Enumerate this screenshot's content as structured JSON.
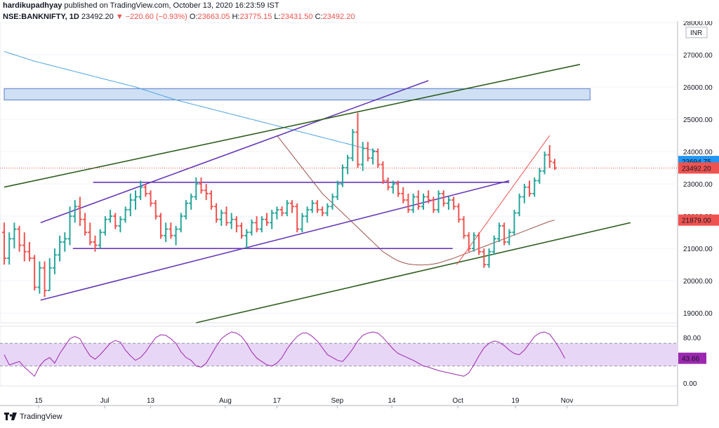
{
  "header": {
    "user": "hardikupadhyay",
    "published": "published on TradingView.com, October 13, 2020 16:23:59 IST",
    "symbol": "NSE:BANKNIFTY, 1D",
    "last": "23492.20",
    "change": "▼ −220.60 (−0.93%)",
    "o_label": "O:",
    "o_val": "23663.05",
    "h_label": "H:",
    "h_val": "23775.15",
    "l_label": "L:",
    "l_val": "23431.50",
    "c_label": "C:",
    "c_val": "23492.20"
  },
  "footer": {
    "brand": "TradingView"
  },
  "colors": {
    "up": "#26a69a",
    "down": "#ef5350",
    "purple_line": "#673ab7",
    "green_line": "#2e5e1e",
    "ma_blue": "#4da3e0",
    "ma_brown": "#a0524a",
    "rsi": "#9c27b0",
    "rsi_band": "#e8d6f7",
    "zone": "#cfe0f5"
  },
  "chart_data": [
    {
      "type": "ohlc",
      "currency": "INR",
      "y_ticks": [
        "28000.00",
        "27000.00",
        "26000.00",
        "25000.00",
        "24000.00",
        "23000.00",
        "22000.00",
        "21000.00",
        "20000.00",
        "19000.00"
      ],
      "x_labels": [
        "15",
        "Jul",
        "13",
        "Aug",
        "17",
        "Sep",
        "14",
        "Oct",
        "19",
        "Nov"
      ],
      "ylim": [
        18700,
        28000
      ],
      "price_tags": [
        {
          "label": "23694.75",
          "value": 23694.75,
          "color": "#2196f3"
        },
        {
          "label": "23492.20",
          "value": 23492.2,
          "color": "#ef5350"
        },
        {
          "label": "21879.00",
          "value": 21879,
          "color": "#ef5350"
        }
      ],
      "zones": [
        {
          "from": 25600,
          "to": 25950,
          "x_start_idx": 0,
          "x_end_idx": 116
        }
      ],
      "bars": [
        [
          21500,
          21800,
          20500,
          20700
        ],
        [
          20700,
          21500,
          20500,
          21300
        ],
        [
          21300,
          21800,
          21000,
          21600
        ],
        [
          21600,
          21700,
          20900,
          21100
        ],
        [
          21100,
          21500,
          20600,
          20900
        ],
        [
          20900,
          21200,
          20600,
          20700
        ],
        [
          20700,
          20800,
          19700,
          19800
        ],
        [
          19800,
          20600,
          19600,
          20400
        ],
        [
          20400,
          20600,
          19500,
          19700
        ],
        [
          19700,
          20700,
          19700,
          20400
        ],
        [
          20400,
          21000,
          20200,
          20800
        ],
        [
          20800,
          21400,
          20600,
          21200
        ],
        [
          21200,
          21500,
          20900,
          21300
        ],
        [
          21300,
          22300,
          21100,
          22000
        ],
        [
          22000,
          22500,
          21800,
          22300
        ],
        [
          22300,
          22600,
          21700,
          21900
        ],
        [
          21900,
          22100,
          21400,
          21500
        ],
        [
          21500,
          21800,
          21100,
          21200
        ],
        [
          21200,
          21400,
          20900,
          21100
        ],
        [
          21100,
          21600,
          21000,
          21500
        ],
        [
          21500,
          22000,
          21400,
          21900
        ],
        [
          21900,
          22200,
          21800,
          22000
        ],
        [
          22000,
          22100,
          21600,
          21700
        ],
        [
          21700,
          22000,
          21500,
          21900
        ],
        [
          21900,
          22300,
          21800,
          22200
        ],
        [
          22200,
          22700,
          22000,
          22500
        ],
        [
          22500,
          22800,
          22200,
          22600
        ],
        [
          22600,
          23100,
          22500,
          22900
        ],
        [
          22900,
          23000,
          22600,
          22700
        ],
        [
          22700,
          22800,
          22300,
          22400
        ],
        [
          22400,
          22500,
          21900,
          22000
        ],
        [
          22000,
          22100,
          21300,
          21400
        ],
        [
          21400,
          21800,
          21200,
          21600
        ],
        [
          21600,
          21800,
          21300,
          21400
        ],
        [
          21400,
          21700,
          21100,
          21600
        ],
        [
          21600,
          22100,
          21500,
          22000
        ],
        [
          22000,
          22500,
          21900,
          22400
        ],
        [
          22400,
          22700,
          22200,
          22600
        ],
        [
          22600,
          23200,
          22500,
          23000
        ],
        [
          23000,
          23200,
          22700,
          22800
        ],
        [
          22800,
          23000,
          22500,
          22700
        ],
        [
          22700,
          22800,
          22200,
          22300
        ],
        [
          22300,
          22400,
          21800,
          21900
        ],
        [
          21900,
          22200,
          21700,
          22100
        ],
        [
          22100,
          22300,
          21700,
          21800
        ],
        [
          21800,
          22100,
          21600,
          21900
        ],
        [
          21900,
          22000,
          21500,
          21700
        ],
        [
          21700,
          21800,
          21300,
          21400
        ],
        [
          21400,
          21600,
          21000,
          21500
        ],
        [
          21500,
          21900,
          21400,
          21800
        ],
        [
          21800,
          22000,
          21500,
          21600
        ],
        [
          21600,
          22000,
          21500,
          21900
        ],
        [
          21900,
          22100,
          21700,
          21800
        ],
        [
          21800,
          22200,
          21600,
          22100
        ],
        [
          22100,
          22300,
          21900,
          22200
        ],
        [
          22200,
          22300,
          22000,
          22100
        ],
        [
          22100,
          22500,
          22000,
          22400
        ],
        [
          22400,
          22500,
          22100,
          22300
        ],
        [
          22300,
          22400,
          21500,
          21600
        ],
        [
          21600,
          22100,
          21500,
          22000
        ],
        [
          22000,
          22300,
          21800,
          22200
        ],
        [
          22200,
          22500,
          22100,
          22400
        ],
        [
          22400,
          22500,
          22100,
          22200
        ],
        [
          22200,
          22300,
          22000,
          22100
        ],
        [
          22100,
          22400,
          22000,
          22300
        ],
        [
          22300,
          22700,
          22200,
          22600
        ],
        [
          22600,
          23100,
          22500,
          23000
        ],
        [
          23000,
          23600,
          22900,
          23500
        ],
        [
          23500,
          23900,
          23300,
          23800
        ],
        [
          23800,
          24700,
          23700,
          24600
        ],
        [
          24600,
          25200,
          23500,
          23600
        ],
        [
          23600,
          24300,
          23400,
          24100
        ],
        [
          24100,
          24300,
          23700,
          23800
        ],
        [
          23800,
          24100,
          23600,
          24000
        ],
        [
          24000,
          24100,
          23500,
          23600
        ],
        [
          23600,
          23700,
          23000,
          23100
        ],
        [
          23100,
          23200,
          22800,
          22900
        ],
        [
          22900,
          23100,
          22700,
          23000
        ],
        [
          23000,
          23100,
          22600,
          22700
        ],
        [
          22700,
          22900,
          22400,
          22500
        ],
        [
          22500,
          22700,
          22100,
          22200
        ],
        [
          22200,
          22700,
          22100,
          22600
        ],
        [
          22600,
          22800,
          22200,
          22300
        ],
        [
          22300,
          22700,
          22200,
          22600
        ],
        [
          22600,
          22800,
          22400,
          22500
        ],
        [
          22500,
          22600,
          22100,
          22200
        ],
        [
          22200,
          22800,
          22100,
          22700
        ],
        [
          22700,
          22800,
          22300,
          22400
        ],
        [
          22400,
          22600,
          22200,
          22500
        ],
        [
          22500,
          22600,
          22200,
          22300
        ],
        [
          22300,
          22400,
          21800,
          21900
        ],
        [
          21900,
          22000,
          21300,
          21400
        ],
        [
          21400,
          21500,
          20900,
          21000
        ],
        [
          21000,
          21500,
          20900,
          21400
        ],
        [
          21400,
          21500,
          20800,
          20900
        ],
        [
          20900,
          21000,
          20400,
          20500
        ],
        [
          20500,
          21000,
          20400,
          20900
        ],
        [
          20900,
          21400,
          20800,
          21300
        ],
        [
          21300,
          21800,
          21200,
          21700
        ],
        [
          21700,
          21800,
          21100,
          21200
        ],
        [
          21200,
          21600,
          21100,
          21500
        ],
        [
          21500,
          22200,
          21400,
          22100
        ],
        [
          22100,
          22700,
          22000,
          22600
        ],
        [
          22600,
          23000,
          22400,
          22900
        ],
        [
          22900,
          23100,
          22600,
          22700
        ],
        [
          22700,
          23200,
          22600,
          23100
        ],
        [
          23100,
          23500,
          23000,
          23400
        ],
        [
          23400,
          24000,
          23300,
          23900
        ],
        [
          23900,
          24200,
          23500,
          23700
        ],
        [
          23663,
          23775,
          23431,
          23492
        ]
      ],
      "ma_long": [
        27100,
        27050,
        27000,
        26950,
        26900,
        26850,
        26800,
        26760,
        26720,
        26680,
        26640,
        26600,
        26560,
        26520,
        26480,
        26440,
        26400,
        26360,
        26320,
        26280,
        26240,
        26200,
        26160,
        26120,
        26080,
        26040,
        26000,
        25950,
        25900,
        25850,
        25800,
        25750,
        25700,
        25650,
        25600,
        25560,
        25520,
        25480,
        25440,
        25400,
        25360,
        25320,
        25280,
        25240,
        25200,
        25160,
        25120,
        25080,
        25040,
        25000,
        24960,
        24920,
        24880,
        24840,
        24800,
        24760,
        24720,
        24680,
        24640,
        24600,
        24560,
        24520,
        24480,
        24440,
        24400,
        24360,
        24320,
        24280,
        24240,
        24200,
        24160,
        24120,
        24080,
        24040,
        24000
      ],
      "ma_mid": [
        24500,
        24300,
        24100,
        23900,
        23700,
        23500,
        23300,
        23100,
        22900,
        22700,
        22550,
        22400,
        22250,
        22100,
        21950,
        21800,
        21650,
        21500,
        21350,
        21200,
        21050,
        20900,
        20800,
        20700,
        20620,
        20560,
        20520,
        20500,
        20490,
        20490,
        20500,
        20520,
        20550,
        20600,
        20650,
        20700,
        20760,
        20820,
        20880,
        20940,
        21000,
        21060,
        21120,
        21180,
        21240,
        21300,
        21360,
        21420,
        21480,
        21540,
        21600,
        21660,
        21720,
        21780,
        21840,
        21879
      ],
      "trend_lines": [
        {
          "name": "purple-upper",
          "color": "#673ab7",
          "points": [
            [
              18,
              21800
            ],
            [
              210,
              26200
            ]
          ]
        },
        {
          "name": "purple-lower",
          "color": "#673ab7",
          "points": [
            [
              18,
              19400
            ],
            [
              250,
              23100
            ]
          ]
        },
        {
          "name": "purple-h1",
          "color": "#673ab7",
          "points": [
            [
              44,
              23050
            ],
            [
              250,
              23050
            ]
          ]
        },
        {
          "name": "purple-h2",
          "color": "#673ab7",
          "points": [
            [
              34,
              21000
            ],
            [
              222,
              21000
            ]
          ]
        },
        {
          "name": "green-upper",
          "color": "#2e5e1e",
          "points": [
            [
              0,
              22900
            ],
            [
              285,
              26700
            ]
          ]
        },
        {
          "name": "green-lower",
          "color": "#2e5e1e",
          "points": [
            [
              95,
              18700
            ],
            [
              310,
              21800
            ]
          ]
        },
        {
          "name": "red-trend",
          "color": "#ef5350",
          "points": [
            [
              224,
              20500
            ],
            [
              270,
              24500
            ]
          ]
        }
      ]
    },
    {
      "type": "line",
      "panel": "rsi",
      "y_ticks": [
        "80.00",
        "0.00"
      ],
      "ylim": [
        -5,
        100
      ],
      "band": [
        30,
        70
      ],
      "last_label": "43.66",
      "values": [
        50,
        32,
        35,
        38,
        28,
        20,
        12,
        30,
        40,
        45,
        35,
        52,
        65,
        78,
        82,
        78,
        62,
        48,
        42,
        50,
        60,
        70,
        75,
        72,
        58,
        48,
        40,
        45,
        55,
        68,
        80,
        85,
        84,
        78,
        70,
        55,
        45,
        40,
        30,
        28,
        35,
        50,
        65,
        78,
        85,
        90,
        88,
        82,
        70,
        55,
        44,
        38,
        32,
        30,
        35,
        45,
        60,
        72,
        82,
        88,
        88,
        82,
        74,
        62,
        50,
        45,
        40,
        38,
        48,
        60,
        74,
        84,
        88,
        90,
        88,
        80,
        70,
        60,
        52,
        48,
        44,
        40,
        35,
        30,
        28,
        25,
        22,
        20,
        18,
        16,
        14,
        12,
        18,
        32,
        48,
        62,
        70,
        74,
        72,
        66,
        58,
        52,
        50,
        58,
        70,
        82,
        88,
        90,
        86,
        74,
        60,
        43.66
      ]
    }
  ]
}
